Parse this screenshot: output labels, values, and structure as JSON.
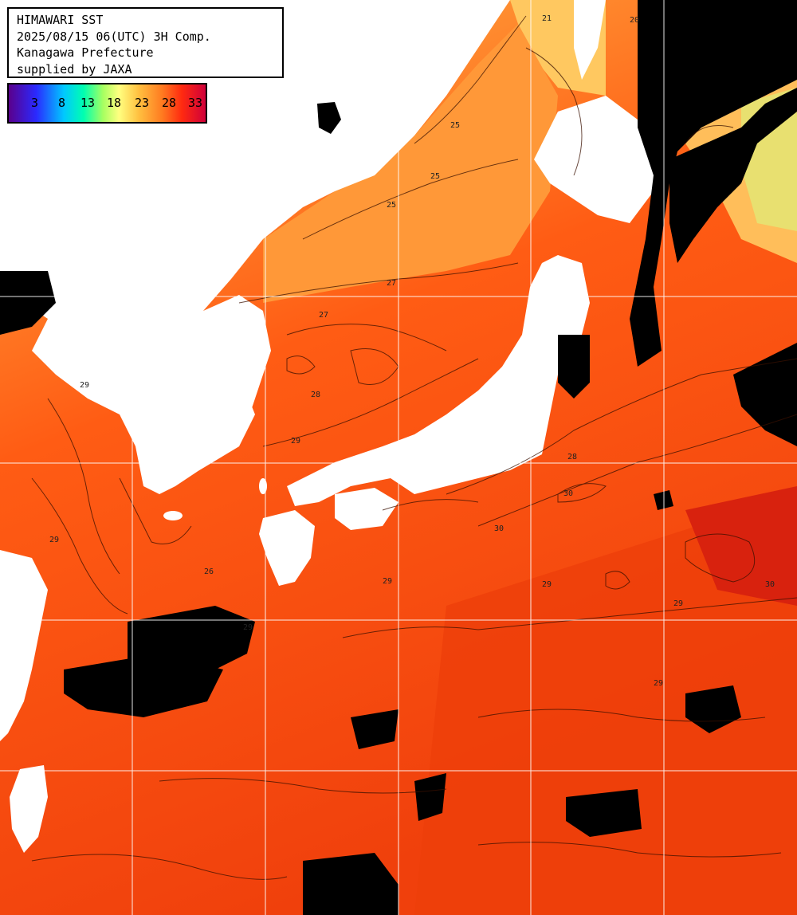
{
  "header": {
    "lines": [
      "HIMAWARI SST",
      "2025/08/15 06(UTC) 3H Comp.",
      "Kanagawa Prefecture",
      "supplied by JAXA"
    ]
  },
  "legend": {
    "ticks": [
      "3",
      "8",
      "13",
      "18",
      "23",
      "28",
      "33"
    ]
  },
  "contour_labels": [
    "21",
    "20",
    "25",
    "25",
    "25",
    "27",
    "27",
    "28",
    "29",
    "29",
    "29",
    "29",
    "29",
    "30",
    "30",
    "29",
    "29",
    "29",
    "30",
    "28",
    "26"
  ],
  "colors": {
    "warm": "#ff5a14",
    "hot": "#ee3a0c",
    "mild": "#ff9a38",
    "cool": "#ffd070",
    "land": "#ffffff",
    "cloud": "#000000",
    "grid": "#ffffff"
  }
}
